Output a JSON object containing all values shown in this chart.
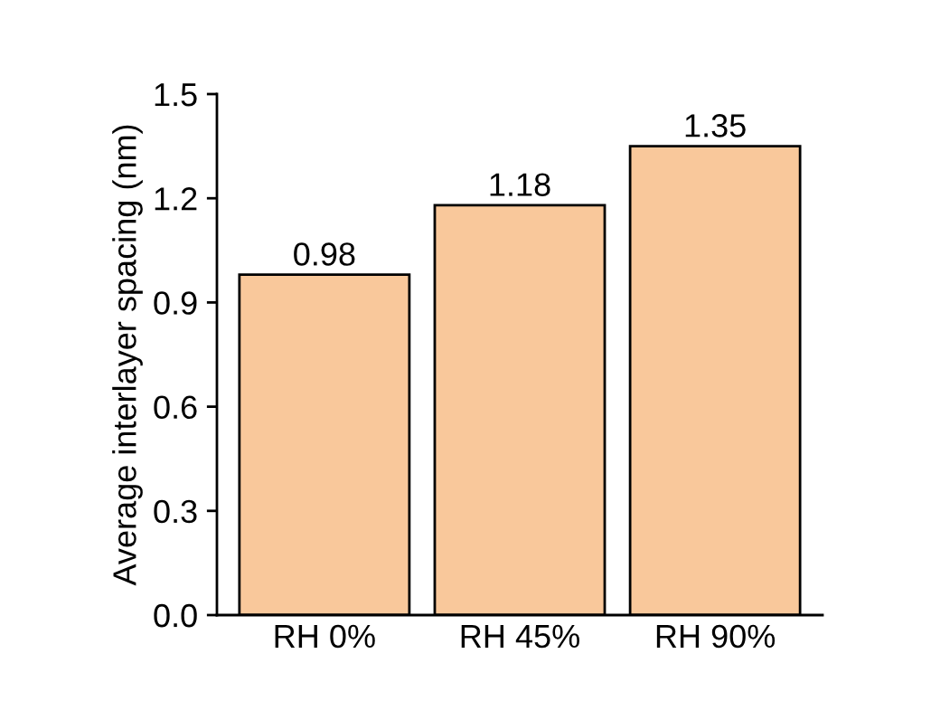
{
  "chart_data": {
    "type": "bar",
    "ylabel": "Average interlayer spacing (nm)",
    "categories": [
      "RH 0%",
      "RH 45%",
      "RH 90%"
    ],
    "values": [
      0.98,
      1.18,
      1.35
    ],
    "color": "#f9c89b",
    "data_labels": true,
    "ylim": [
      0,
      1.5
    ],
    "yticks": [
      {
        "value": 0,
        "label": "0.0"
      },
      {
        "value": 0.3,
        "label": "0.3"
      },
      {
        "value": 0.6,
        "label": "0.6"
      },
      {
        "value": 0.9,
        "label": "0.9"
      },
      {
        "value": 1.2,
        "label": "1.2"
      },
      {
        "value": 1.5,
        "label": "1.5"
      }
    ],
    "grid": false,
    "legend": false
  }
}
